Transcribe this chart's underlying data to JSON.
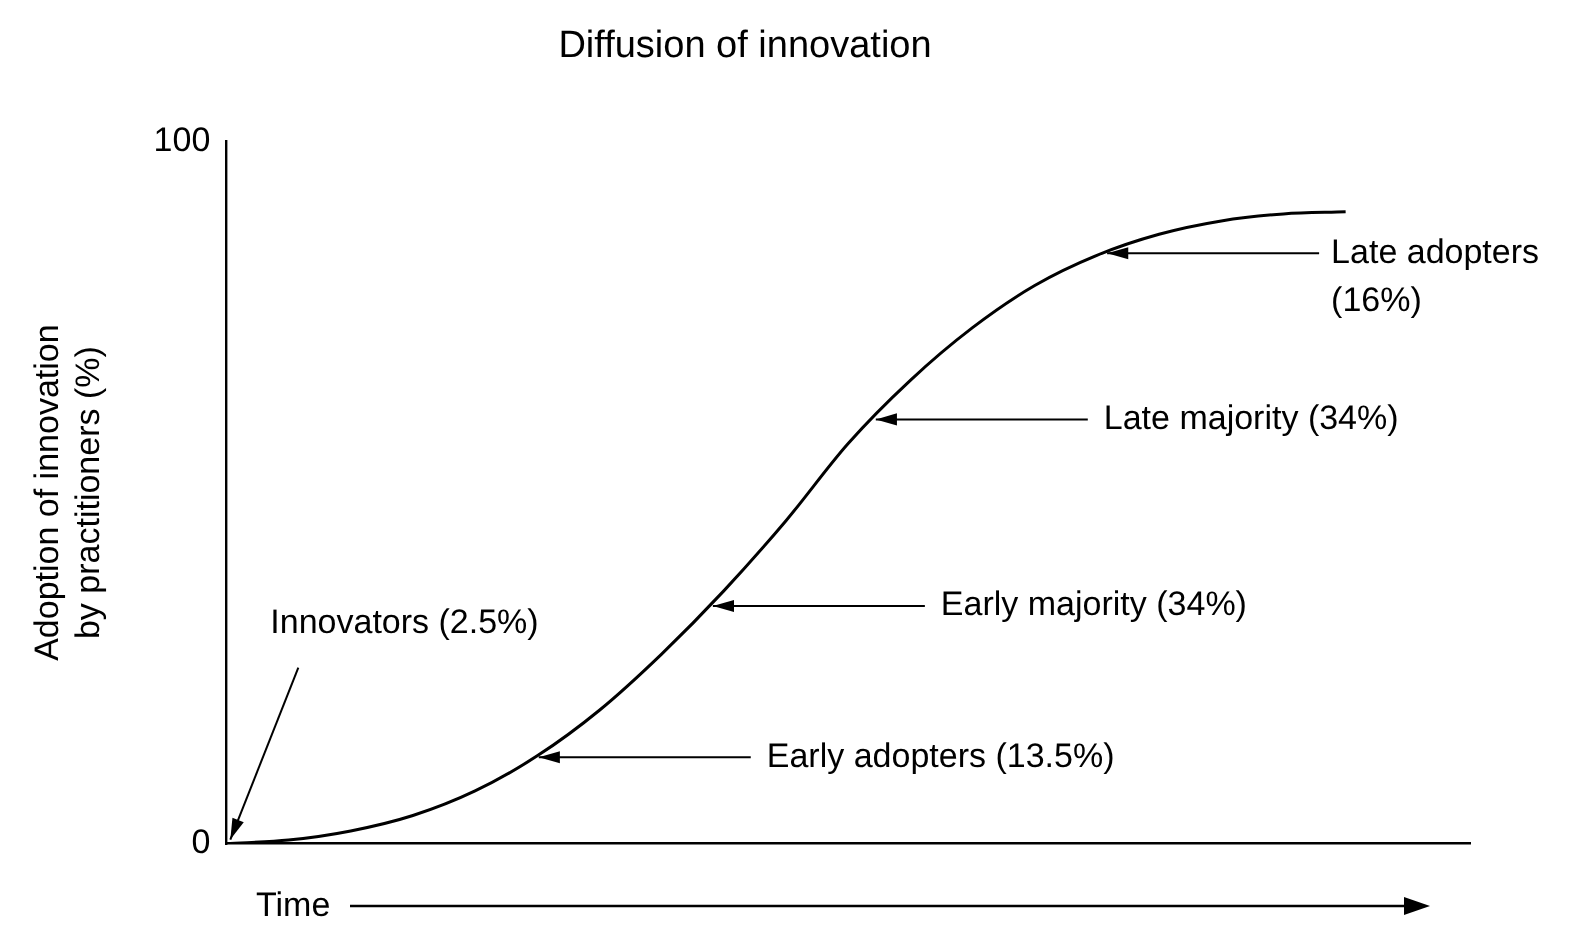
{
  "chart_data": {
    "type": "line",
    "title": "Diffusion of innovation",
    "xlabel": "Time",
    "ylabel": "Adoption of innovation by practitioners (%)",
    "categories": [
      null,
      null,
      null,
      null,
      null,
      null,
      null,
      null,
      null,
      null,
      null,
      null,
      null,
      null,
      null,
      null,
      null,
      null,
      null,
      null,
      null
    ],
    "series": [
      {
        "color": "#000000",
        "values": [
          0,
          0.5,
          1.8,
          4,
          7.5,
          12.5,
          19,
          27,
          36,
          46,
          57,
          66,
          73.5,
          79.5,
          83.8,
          86.8,
          88.7,
          89.7,
          90,
          null,
          null
        ]
      }
    ],
    "ylim": [
      0,
      100
    ],
    "yticks": [
      0,
      100
    ],
    "grid": false,
    "legend": false,
    "marker": "none",
    "line_style": "solid",
    "tick_labels": "y",
    "annotations": [
      "Innovators (2.5%)",
      "Early adopters (13.5%)",
      "Early majority (34%)",
      "Late majority (34%)",
      "Late adopters (16%)"
    ]
  }
}
